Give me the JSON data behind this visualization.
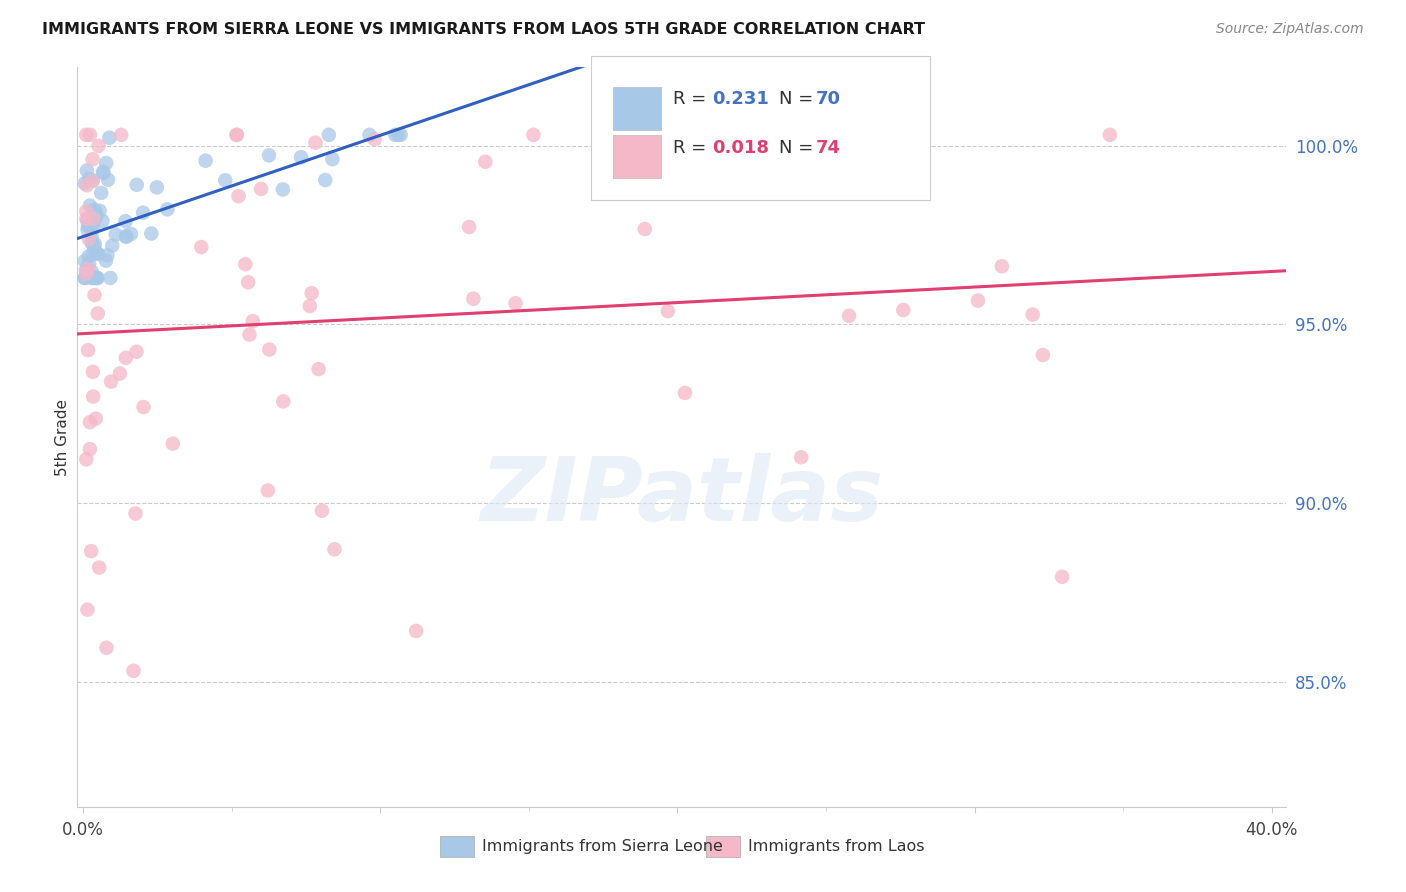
{
  "title": "IMMIGRANTS FROM SIERRA LEONE VS IMMIGRANTS FROM LAOS 5TH GRADE CORRELATION CHART",
  "source": "Source: ZipAtlas.com",
  "ylabel": "5th Grade",
  "ytick_labels": [
    "100.0%",
    "95.0%",
    "90.0%",
    "85.0%"
  ],
  "ytick_values": [
    1.0,
    0.95,
    0.9,
    0.85
  ],
  "xlim": [
    -0.002,
    0.405
  ],
  "ylim": [
    0.815,
    1.022
  ],
  "blue_color": "#a8c8e8",
  "pink_color": "#f4b8c8",
  "blue_line_color": "#3060c0",
  "pink_line_color": "#e04070",
  "legend_R1": "0.231",
  "legend_N1": "70",
  "legend_R2": "0.018",
  "legend_N2": "74",
  "watermark": "ZIPatlas",
  "grid_color": "#cccccc",
  "blue_intercept": 0.972,
  "blue_slope": 0.35,
  "pink_intercept": 0.951,
  "pink_slope": 0.04
}
